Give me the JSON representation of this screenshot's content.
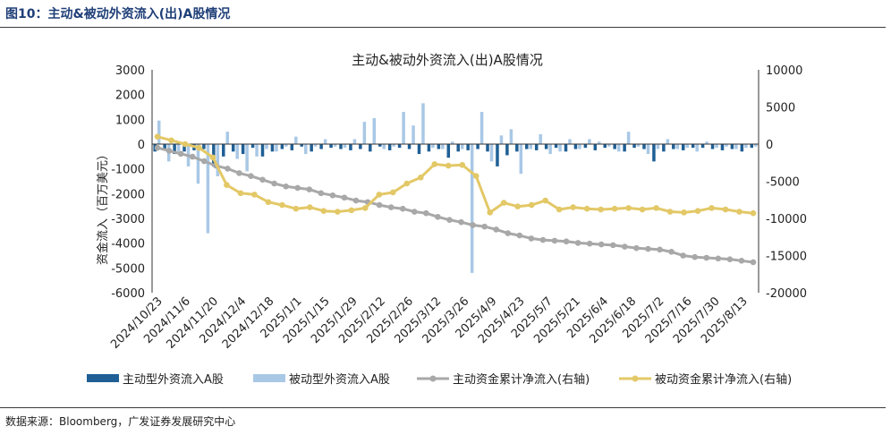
{
  "figure": {
    "title": "图10：主动&被动外资流入(出)A股情况",
    "source": "数据来源：Bloomberg，广发证券发展研究中心"
  },
  "colors": {
    "active_bar": "#1f5f95",
    "passive_bar": "#a9c8e6",
    "active_line": "#a8a8a8",
    "passive_line": "#e3c867",
    "axis": "#333333"
  },
  "chart_data": {
    "type": "bar",
    "title": "主动&被动外资流入(出)A股情况",
    "ylabel": "资金流入（百万美元）",
    "ylabel_right": "",
    "ylim": [
      -6000,
      3000
    ],
    "ylim_right": [
      -20000,
      10000
    ],
    "yticks": [
      3000,
      2000,
      1000,
      0,
      -1000,
      -2000,
      -3000,
      -4000,
      -5000,
      -6000
    ],
    "yticks_right": [
      10000,
      5000,
      0,
      -5000,
      -10000,
      -15000,
      -20000
    ],
    "x_tick_labels": [
      "2024/10/23",
      "2024/11/6",
      "2024/11/20",
      "2024/12/4",
      "2024/12/18",
      "2025/1/1",
      "2025/1/15",
      "2025/1/29",
      "2025/2/12",
      "2025/2/26",
      "2025/3/12",
      "2025/3/26",
      "2025/4/9",
      "2025/4/23",
      "2025/5/7",
      "2025/5/21",
      "2025/6/4",
      "2025/6/18",
      "2025/7/2",
      "2025/7/16",
      "2025/7/30",
      "2025/8/13"
    ],
    "legend_position": "bottom",
    "grid": false,
    "series": [
      {
        "name": "主动型外资流入A股",
        "type": "bar",
        "axis": "left",
        "values": [
          -300,
          -200,
          -400,
          -300,
          -250,
          -200,
          -900,
          -500,
          -300,
          -400,
          -150,
          -500,
          -300,
          -200,
          -250,
          -100,
          -300,
          -200,
          -150,
          -200,
          -250,
          -200,
          -300,
          -100,
          -250,
          -150,
          -200,
          -400,
          -300,
          -200,
          -550,
          -300,
          -250,
          -200,
          -300,
          -900,
          -450,
          -300,
          -200,
          -250,
          -200,
          -150,
          -300,
          -200,
          -150,
          -250,
          -150,
          -200,
          -300,
          -150,
          -200,
          -700,
          -300,
          -200,
          -250,
          -150,
          -150,
          -200,
          -250,
          -200,
          -300,
          -150
        ]
      },
      {
        "name": "被动型外资流入A股",
        "type": "bar",
        "axis": "left",
        "values": [
          950,
          -700,
          -300,
          -900,
          -1600,
          -3600,
          -1300,
          500,
          -600,
          -1100,
          -500,
          -200,
          -300,
          -100,
          300,
          -400,
          -100,
          200,
          -100,
          -150,
          200,
          900,
          1050,
          -200,
          -100,
          1300,
          750,
          1650,
          -150,
          -200,
          100,
          -200,
          -5200,
          1300,
          -700,
          350,
          600,
          -1200,
          -200,
          400,
          -400,
          -300,
          200,
          -200,
          200,
          100,
          -100,
          -300,
          500,
          -100,
          -400,
          -200,
          200,
          -200,
          -150,
          -300,
          100,
          -150,
          -100,
          -200,
          -150,
          -100
        ]
      },
      {
        "name": "主动资金累计净流入(右轴)",
        "type": "line",
        "axis": "right",
        "values": [
          -500,
          -900,
          -1300,
          -1700,
          -2300,
          -2900,
          -3300,
          -3900,
          -4300,
          -4800,
          -5300,
          -5700,
          -5900,
          -6100,
          -6600,
          -6900,
          -7200,
          -7600,
          -7800,
          -8200,
          -8500,
          -8700,
          -9100,
          -9300,
          -9800,
          -10200,
          -10500,
          -10900,
          -11100,
          -11500,
          -12000,
          -12300,
          -12700,
          -12900,
          -13000,
          -13100,
          -13300,
          -13400,
          -13500,
          -13600,
          -13800,
          -14000,
          -14100,
          -14200,
          -14500,
          -15000,
          -15200,
          -15300,
          -15400,
          -15500,
          -15700,
          -15900
        ]
      },
      {
        "name": "被动资金累计净流入(右轴)",
        "type": "line",
        "axis": "right",
        "values": [
          1000,
          500,
          0,
          -500,
          -1800,
          -5500,
          -6600,
          -6800,
          -7800,
          -8200,
          -8700,
          -8500,
          -9000,
          -9100,
          -8900,
          -8600,
          -6800,
          -6500,
          -5300,
          -4500,
          -2700,
          -2900,
          -2800,
          -4300,
          -9200,
          -7900,
          -8400,
          -8200,
          -7600,
          -8800,
          -8500,
          -8700,
          -8800,
          -8700,
          -8600,
          -8800,
          -8600,
          -9100,
          -9200,
          -9000,
          -8600,
          -8800,
          -9100,
          -9300
        ]
      }
    ]
  }
}
